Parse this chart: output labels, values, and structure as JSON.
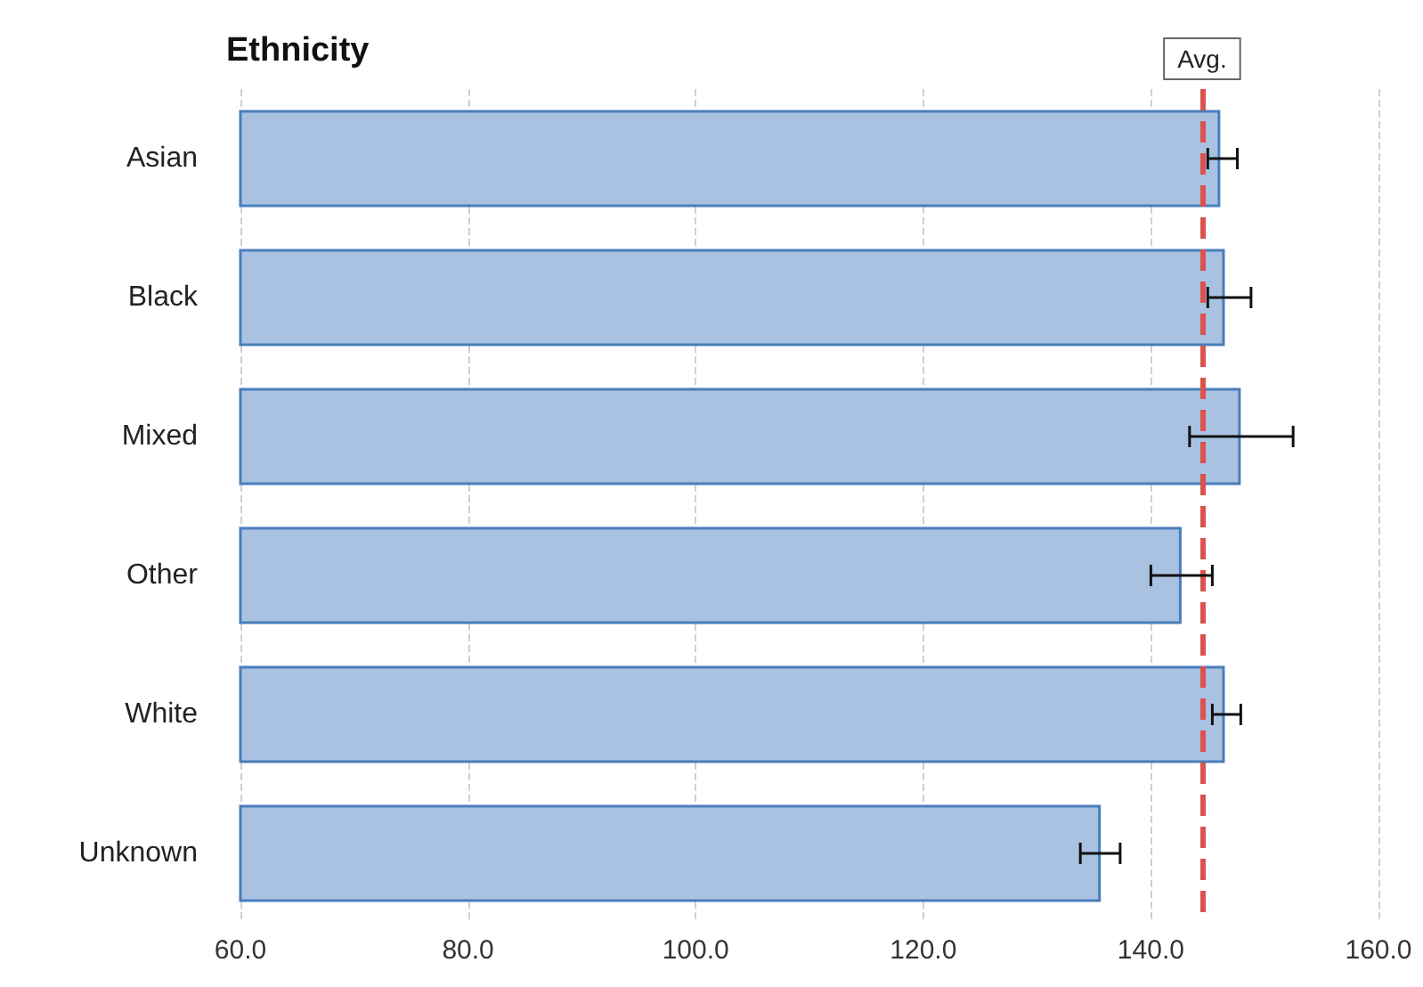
{
  "chart_data": {
    "type": "bar",
    "orientation": "horizontal",
    "title": "Ethnicity",
    "categories": [
      "Asian",
      "Black",
      "Mixed",
      "Other",
      "White",
      "Unknown"
    ],
    "values": [
      146.1,
      146.5,
      147.9,
      142.7,
      146.5,
      135.6
    ],
    "errors": [
      [
        145.0,
        147.6
      ],
      [
        145.0,
        148.8
      ],
      [
        143.4,
        152.5
      ],
      [
        140.0,
        145.4
      ],
      [
        145.4,
        147.9
      ],
      [
        133.8,
        137.3
      ]
    ],
    "color": "#a9c2e2",
    "xlim": [
      60,
      160
    ],
    "xticks": [
      {
        "value": 60,
        "label": "60.0"
      },
      {
        "value": 80,
        "label": "80.0"
      },
      {
        "value": 100,
        "label": "100.0"
      },
      {
        "value": 120,
        "label": "120.0"
      },
      {
        "value": 140,
        "label": "140.0"
      },
      {
        "value": 160,
        "label": "160.0"
      }
    ],
    "grid": "x",
    "ref_lines": [
      {
        "axis": "x",
        "value": 144.5,
        "label": "Avg.",
        "color": "#d9534f",
        "line_style": "dashed"
      }
    ]
  }
}
